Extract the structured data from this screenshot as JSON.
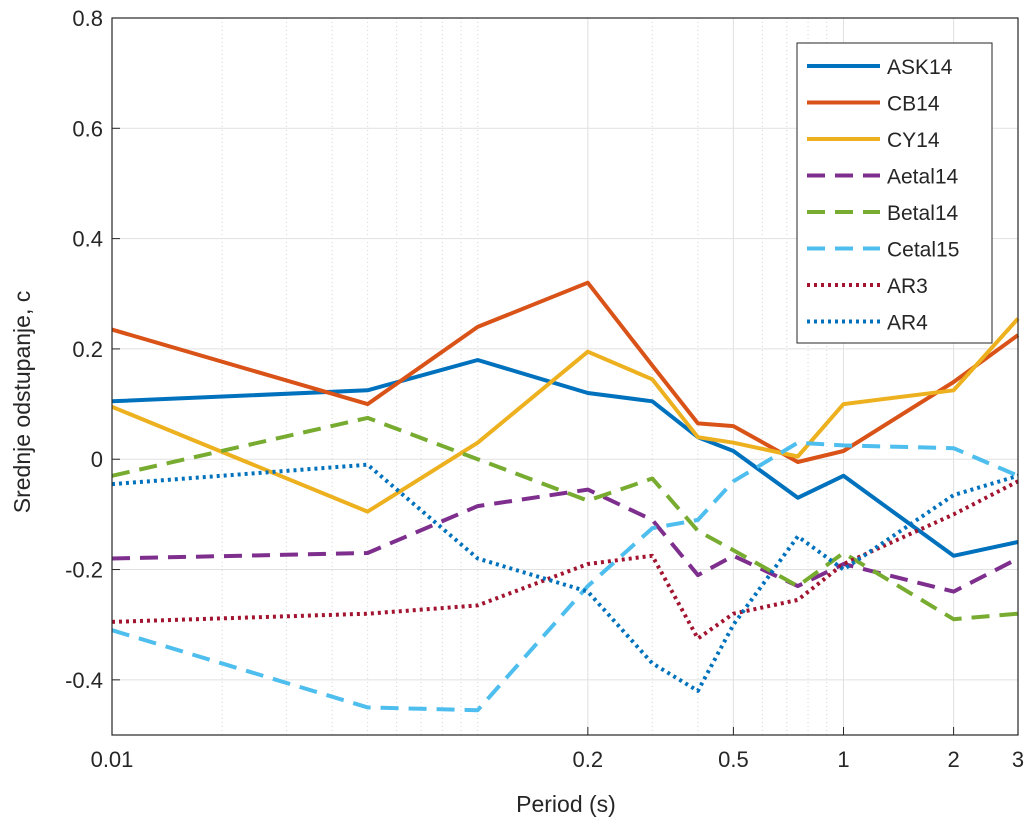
{
  "chart_data": {
    "type": "line",
    "xlabel": "Period (s)",
    "ylabel": "Srednje odstupanje, c",
    "xscale": "log",
    "xlim": [
      0.01,
      3
    ],
    "ylim": [
      -0.5,
      0.8
    ],
    "xticks": [
      0.01,
      0.2,
      0.5,
      1,
      2,
      3
    ],
    "xtick_labels": [
      "0.01",
      "0.2",
      "0.5",
      "1",
      "2",
      "3"
    ],
    "yticks": [
      -0.4,
      -0.2,
      0,
      0.2,
      0.4,
      0.6,
      0.8
    ],
    "ytick_labels": [
      "-0.4",
      "-0.2",
      "0",
      "0.2",
      "0.4",
      "0.6",
      "0.8"
    ],
    "grid": true,
    "legend_position": "top-right",
    "x": [
      0.01,
      0.05,
      0.1,
      0.2,
      0.3,
      0.4,
      0.5,
      0.75,
      1,
      2,
      3
    ],
    "series": [
      {
        "name": "ASK14",
        "color": "#0072bd",
        "style": "solid",
        "values": [
          0.105,
          0.125,
          0.18,
          0.12,
          0.105,
          0.04,
          0.015,
          -0.07,
          -0.03,
          -0.175,
          -0.15
        ]
      },
      {
        "name": "CB14",
        "color": "#d95319",
        "style": "solid",
        "values": [
          0.235,
          0.1,
          0.24,
          0.32,
          0.17,
          0.065,
          0.06,
          -0.005,
          0.015,
          0.14,
          0.225
        ]
      },
      {
        "name": "CY14",
        "color": "#edb120",
        "style": "solid",
        "values": [
          0.095,
          -0.095,
          0.03,
          0.195,
          0.145,
          0.04,
          0.03,
          0.005,
          0.1,
          0.125,
          0.255
        ]
      },
      {
        "name": "Aetal14",
        "color": "#7e2f8e",
        "style": "dashed",
        "values": [
          -0.18,
          -0.17,
          -0.085,
          -0.055,
          -0.11,
          -0.21,
          -0.175,
          -0.23,
          -0.19,
          -0.24,
          -0.18
        ]
      },
      {
        "name": "Betal14",
        "color": "#77ac30",
        "style": "dashed",
        "values": [
          -0.03,
          0.075,
          0.0,
          -0.075,
          -0.035,
          -0.13,
          -0.165,
          -0.23,
          -0.17,
          -0.29,
          -0.28
        ]
      },
      {
        "name": "Cetal15",
        "color": "#4dbeee",
        "style": "dashed",
        "values": [
          -0.31,
          -0.45,
          -0.455,
          -0.23,
          -0.125,
          -0.11,
          -0.04,
          0.03,
          0.025,
          0.02,
          -0.03
        ]
      },
      {
        "name": "AR3",
        "color": "#a2142f",
        "style": "dotted",
        "values": [
          -0.295,
          -0.28,
          -0.265,
          -0.19,
          -0.175,
          -0.325,
          -0.28,
          -0.255,
          -0.19,
          -0.1,
          -0.04
        ]
      },
      {
        "name": "AR4",
        "color": "#0072bd",
        "style": "dotted",
        "values": [
          -0.045,
          -0.01,
          -0.18,
          -0.24,
          -0.37,
          -0.42,
          -0.3,
          -0.14,
          -0.2,
          -0.065,
          -0.03
        ]
      }
    ]
  }
}
